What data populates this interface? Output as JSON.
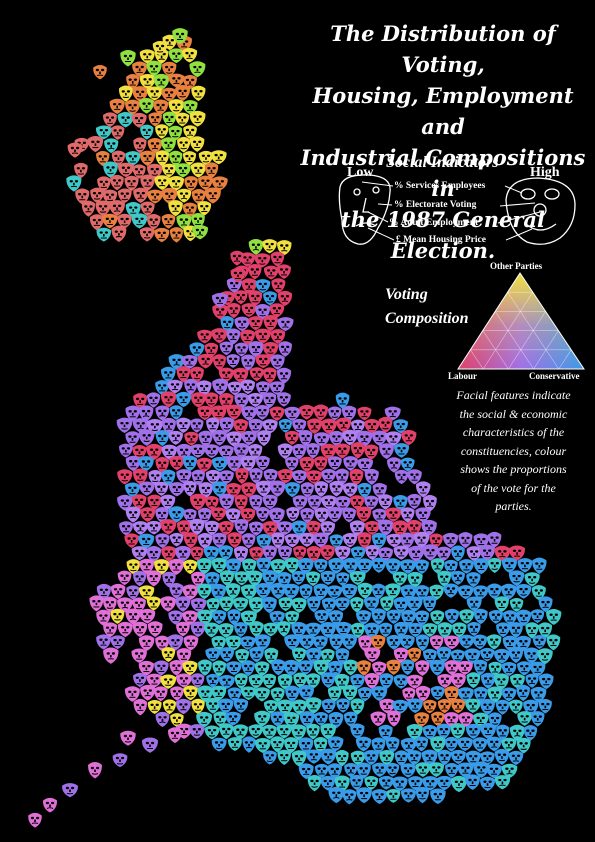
{
  "title_lines": [
    "The Distribution of Voting,",
    "Housing, Employment and",
    "Industrial Compositions in",
    "the 1987 General Election."
  ],
  "legend": {
    "social_indicators": "Social Indicators",
    "low": "Low",
    "high": "High",
    "indicators": [
      "% Services Employees",
      "% Electorate Voting",
      "% Adult Employment",
      "£ Mean Housing Price"
    ],
    "voting_composition_lines": [
      "Voting",
      "Composition"
    ],
    "apex_top": "Other Parties",
    "apex_left": "Labour",
    "apex_right": "Conservative"
  },
  "description_lines": [
    "Facial features indicate",
    "the social & economic",
    "characteristics of the",
    "constituencies, colour",
    "shows the proportions",
    "of the vote for the",
    "parties."
  ],
  "colors": {
    "background": "#000000",
    "labour_red": "#e0406a",
    "conservative_blue": "#3a9be8",
    "other_yellow": "#f0e040",
    "purple_mix": "#a070e8",
    "cyan_mix": "#40c8c8",
    "pink_mix": "#e070d8",
    "orange_mix": "#e88040"
  }
}
